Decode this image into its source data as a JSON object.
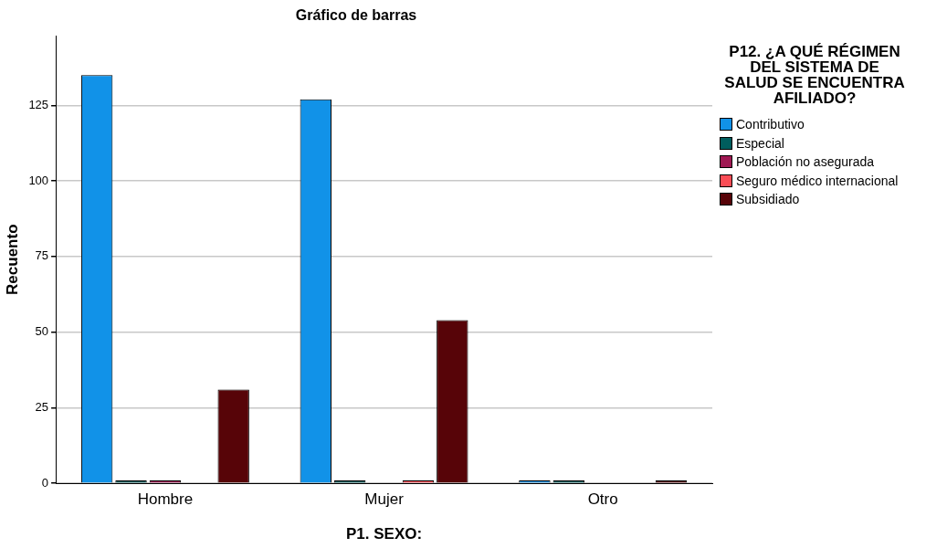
{
  "chart_data": {
    "type": "bar",
    "title": "Gráfico de barras",
    "xlabel": "P1. SEXO:",
    "ylabel": "Recuento",
    "legend_title": "P12. ¿A QUÉ RÉGIMEN DEL SISTEMA DE SALUD SE ENCUENTRA AFILIADO?",
    "categories": [
      "Hombre",
      "Mujer",
      "Otro"
    ],
    "series": [
      {
        "name": "Contributivo",
        "color": "#1192e8",
        "values": [
          135,
          127,
          1
        ]
      },
      {
        "name": "Especial",
        "color": "#005d5d",
        "values": [
          1,
          1,
          1
        ]
      },
      {
        "name": "Población no asegurada",
        "color": "#9f1853",
        "values": [
          1,
          null,
          null
        ]
      },
      {
        "name": "Seguro médico internacional",
        "color": "#fa4d56",
        "values": [
          null,
          1,
          null
        ]
      },
      {
        "name": "Subsidiado",
        "color": "#570408",
        "values": [
          31,
          54,
          1
        ]
      }
    ],
    "ylim": [
      0,
      148
    ],
    "yticks": [
      0,
      25,
      50,
      75,
      100,
      125
    ],
    "grid": "y",
    "legend": "right"
  }
}
